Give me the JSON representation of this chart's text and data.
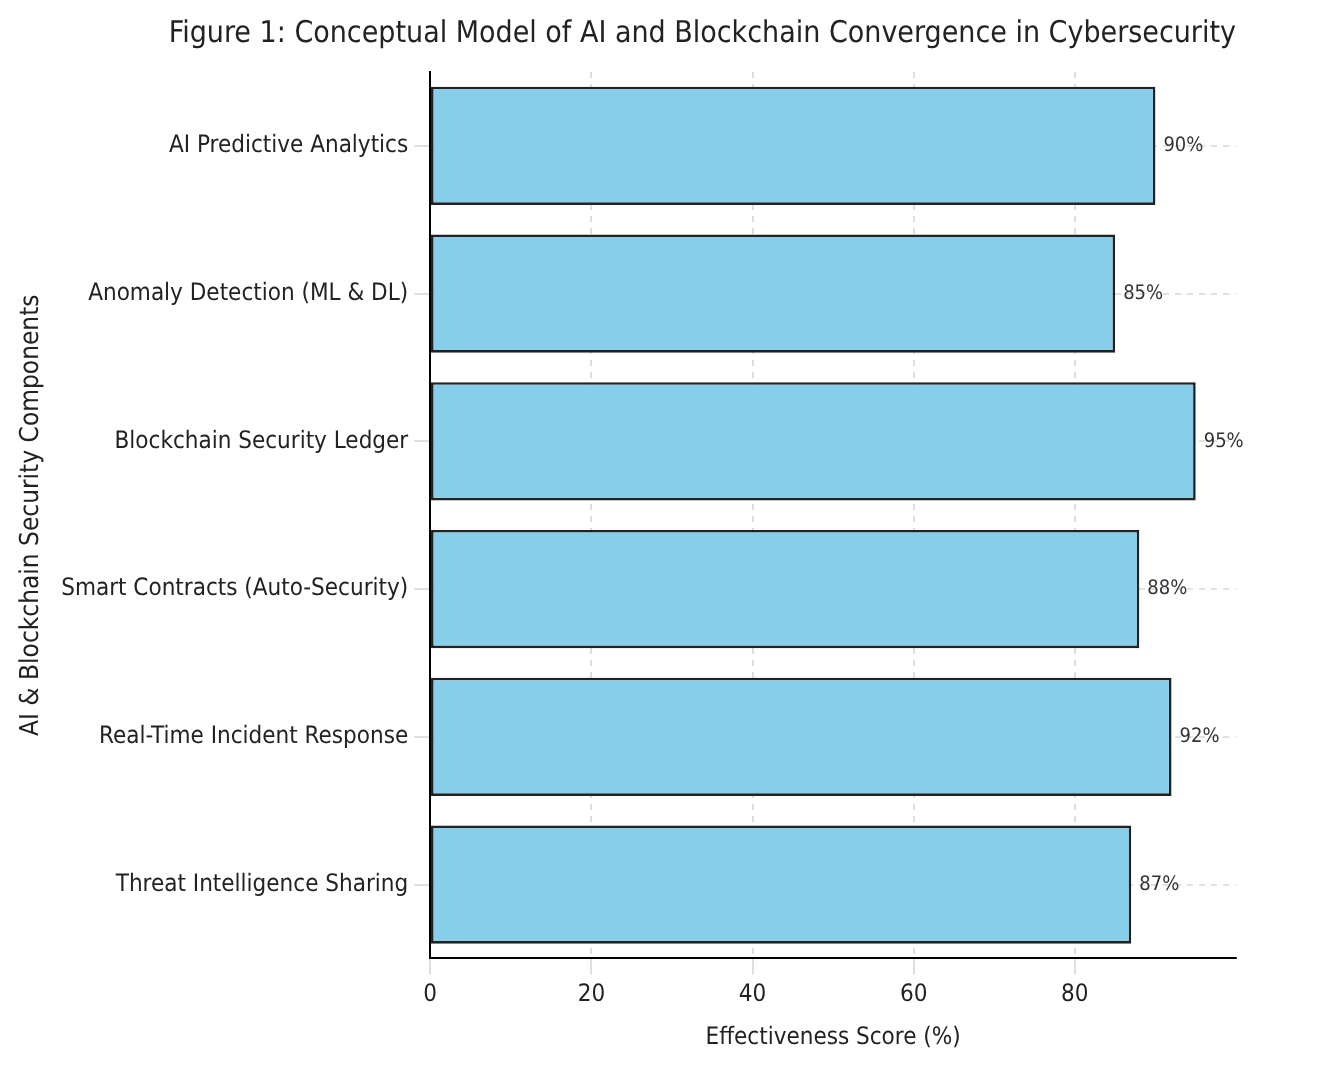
{
  "chart_data": {
    "type": "bar",
    "orientation": "horizontal",
    "title": "Figure 1: Conceptual Model of AI and Blockchain Convergence in Cybersecurity",
    "xlabel": "Effectiveness Score (%)",
    "ylabel": "AI & Blockchain Security Components",
    "categories": [
      "AI Predictive Analytics",
      "Anomaly Detection (ML & DL)",
      "Blockchain Security Ledger",
      "Smart Contracts (Auto-Security)",
      "Real-Time Incident Response",
      "Threat Intelligence Sharing"
    ],
    "values": [
      90,
      85,
      95,
      88,
      92,
      87
    ],
    "value_labels": [
      "90%",
      "85%",
      "95%",
      "88%",
      "92%",
      "87%"
    ],
    "color": "#87ceeb",
    "xlim": [
      0,
      100
    ],
    "xticks": [
      0,
      20,
      40,
      60,
      80
    ],
    "grid": true,
    "legend": false
  }
}
